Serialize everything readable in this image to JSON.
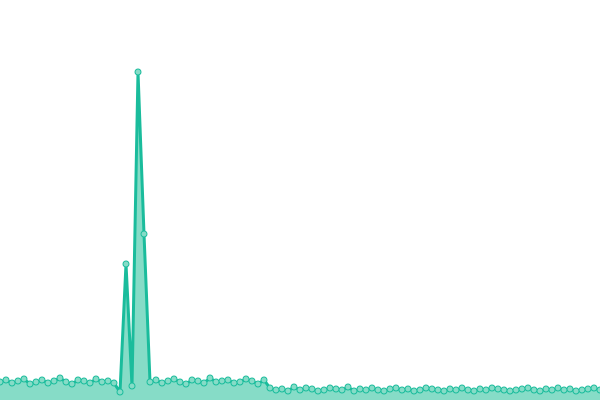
{
  "chart_data": {
    "type": "area",
    "values": [
      18,
      20,
      17,
      19,
      21,
      16,
      18,
      20,
      17,
      19,
      22,
      18,
      16,
      20,
      19,
      17,
      21,
      18,
      19,
      17,
      8,
      136,
      14,
      328,
      166,
      18,
      20,
      17,
      19,
      21,
      18,
      16,
      20,
      19,
      17,
      22,
      18,
      19,
      20,
      17,
      18,
      21,
      19,
      16,
      20,
      12,
      10,
      11,
      9,
      13,
      10,
      12,
      11,
      9,
      10,
      12,
      11,
      10,
      13,
      9,
      11,
      10,
      12,
      10,
      9,
      11,
      12,
      10,
      11,
      9,
      10,
      12,
      11,
      10,
      9,
      11,
      10,
      12,
      10,
      9,
      11,
      10,
      12,
      11,
      10,
      9,
      10,
      11,
      12,
      10,
      9,
      11,
      10,
      12,
      10,
      11,
      9,
      10,
      11,
      12,
      10
    ],
    "color": "#1abc9c",
    "fill": "#86dcc7",
    "markers": true,
    "ylim": [
      0,
      400
    ]
  }
}
